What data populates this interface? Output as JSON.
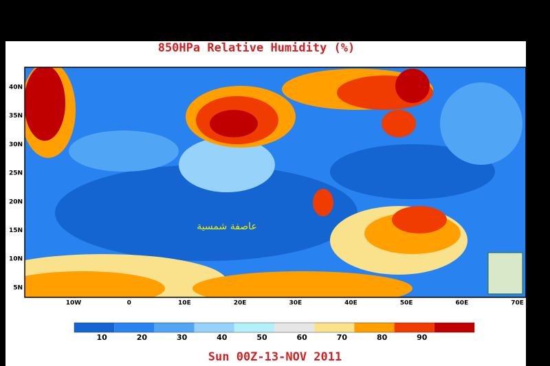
{
  "title": "850HPa Relative Humidity (%)",
  "map": {
    "lat_labels": [
      "40N",
      "35N",
      "30N",
      "25N",
      "20N",
      "15N",
      "10N",
      "5N"
    ],
    "lon_labels": [
      "10W",
      "0",
      "10E",
      "20E",
      "30E",
      "40E",
      "50E",
      "60E",
      "70E"
    ],
    "annotation": "عاصفة شمسية"
  },
  "colorbar": {
    "colors": [
      "#1464d2",
      "#2882f0",
      "#50a5f5",
      "#96d2fa",
      "#b4f0fa",
      "#e6e6e6",
      "#fae18c",
      "#ffa000",
      "#f03c00",
      "#c00000"
    ],
    "ticks": [
      10,
      20,
      30,
      40,
      50,
      60,
      70,
      80,
      90
    ]
  },
  "date": "Sun 00Z-13-NOV 2011"
}
